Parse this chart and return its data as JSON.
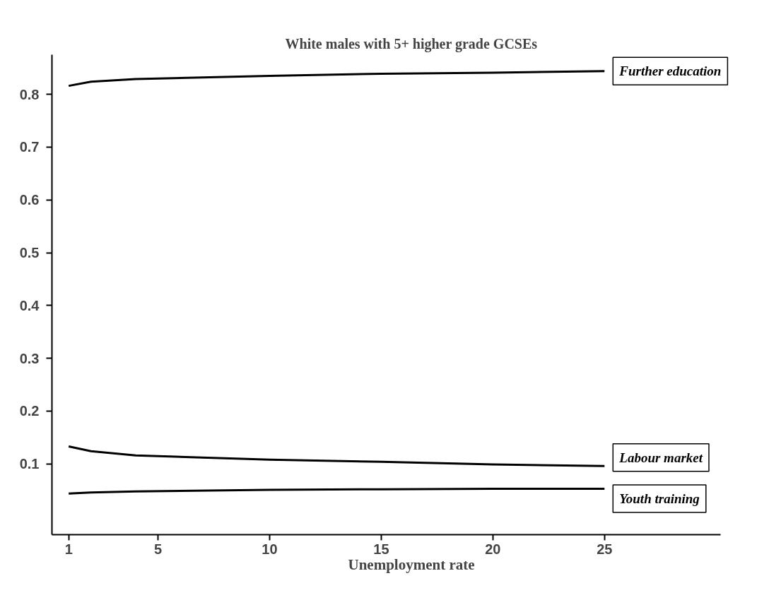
{
  "chart_data": {
    "type": "line",
    "title": "White males with 5+ higher grade GCSEs",
    "xlabel": "Unemployment rate",
    "x": [
      1,
      2,
      4,
      10,
      15,
      20,
      25
    ],
    "series": [
      {
        "name": "Further education",
        "color": "#000000",
        "values": [
          0.816,
          0.824,
          0.829,
          0.835,
          0.839,
          0.841,
          0.844
        ]
      },
      {
        "name": "Labour market",
        "color": "#000000",
        "values": [
          0.133,
          0.124,
          0.116,
          0.108,
          0.104,
          0.099,
          0.096
        ]
      },
      {
        "name": "Youth training",
        "color": "#000000",
        "values": [
          0.044,
          0.046,
          0.048,
          0.051,
          0.052,
          0.053,
          0.053
        ]
      }
    ],
    "xlim": [
      0.25,
      30.2
    ],
    "ylim": [
      -0.034,
      0.875
    ],
    "xticks": [
      1,
      5,
      10,
      15,
      20,
      25
    ],
    "yticks": [
      0.1,
      0.2,
      0.3,
      0.4,
      0.5,
      0.6,
      0.7,
      0.8
    ],
    "grid": false,
    "legend": false,
    "marker": "none",
    "line_style": "solid"
  }
}
